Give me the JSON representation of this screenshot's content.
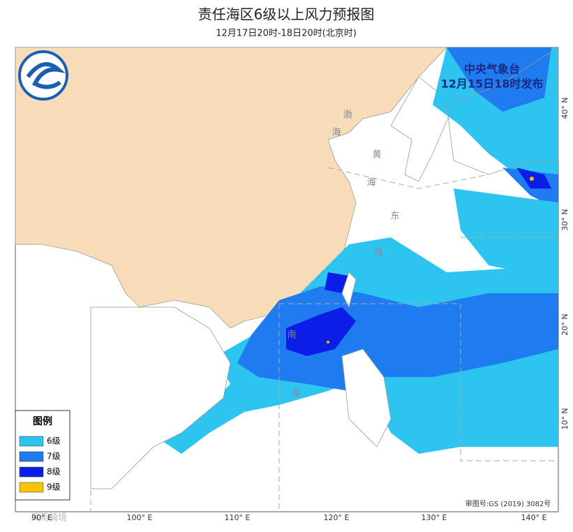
{
  "header": {
    "title": "责任海区6级以上风力预报图",
    "subtitle": "12月17日20时-18日20时(北京时)"
  },
  "issuer": {
    "agency": "中央气象台",
    "issued": "12月15日18时发布"
  },
  "legend": {
    "title": "图例",
    "items": [
      {
        "label": "6级",
        "color": "#2ec4f0"
      },
      {
        "label": "7级",
        "color": "#1e7cf0"
      },
      {
        "label": "8级",
        "color": "#0a1ee6"
      },
      {
        "label": "9级",
        "color": "#f5c400"
      }
    ]
  },
  "lon_labels": [
    "90° E",
    "100° E",
    "110° E",
    "120° E",
    "130° E",
    "140° E"
  ],
  "lat_labels": [
    "40° N",
    "30° N",
    "20° N",
    "10° N"
  ],
  "sea_labels": [
    "渤",
    "海",
    "黄",
    "海",
    "东",
    "海",
    "南",
    "海"
  ],
  "review_number": "审图号:GS (2019) 3082号",
  "watermark": "风雨骑境"
}
